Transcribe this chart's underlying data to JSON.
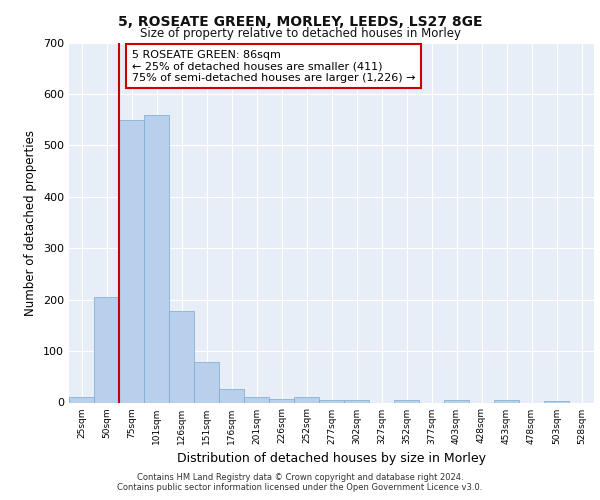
{
  "title1": "5, ROSEATE GREEN, MORLEY, LEEDS, LS27 8GE",
  "title2": "Size of property relative to detached houses in Morley",
  "xlabel": "Distribution of detached houses by size in Morley",
  "ylabel": "Number of detached properties",
  "bar_values": [
    10,
    205,
    550,
    560,
    178,
    78,
    27,
    10,
    7,
    10,
    5,
    5,
    0,
    5,
    0,
    5,
    0,
    5,
    0,
    2,
    0
  ],
  "categories": [
    "25sqm",
    "50sqm",
    "75sqm",
    "101sqm",
    "126sqm",
    "151sqm",
    "176sqm",
    "201sqm",
    "226sqm",
    "252sqm",
    "277sqm",
    "302sqm",
    "327sqm",
    "352sqm",
    "377sqm",
    "403sqm",
    "428sqm",
    "453sqm",
    "478sqm",
    "503sqm",
    "528sqm"
  ],
  "bar_color": "#b8d0eb",
  "bar_edge_color": "#7aaace",
  "background_color": "#e8eef7",
  "grid_color": "#ffffff",
  "annotation_line1": "5 ROSEATE GREEN: 86sqm",
  "annotation_line2": "← 25% of detached houses are smaller (411)",
  "annotation_line3": "75% of semi-detached houses are larger (1,226) →",
  "annotation_box_color": "#ffffff",
  "annotation_border_color": "#cc0000",
  "vline_color": "#cc0000",
  "footer1": "Contains HM Land Registry data © Crown copyright and database right 2024.",
  "footer2": "Contains public sector information licensed under the Open Government Licence v3.0.",
  "ylim": [
    0,
    700
  ],
  "yticks": [
    0,
    100,
    200,
    300,
    400,
    500,
    600,
    700
  ]
}
